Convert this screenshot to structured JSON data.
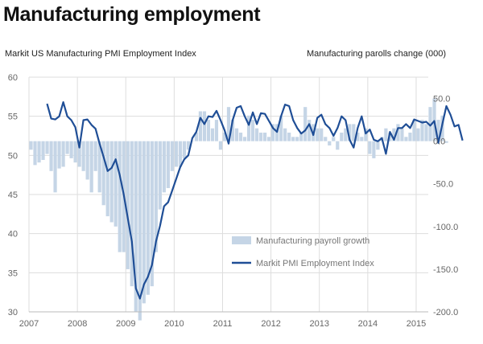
{
  "title": "Manufacturing employment",
  "chart_data": {
    "type": "bar+line",
    "title": "Manufacturing employment",
    "left_axis_label": "Markit US Manufacturing PMI Employment Index",
    "right_axis_label": "Manufacturing parolls change (000)",
    "left_ylim": [
      30,
      60
    ],
    "left_ticks": [
      30,
      35,
      40,
      45,
      50,
      55,
      60
    ],
    "right_ylim": [
      -200,
      75
    ],
    "right_ticks": [
      "50.0",
      "0.0",
      "-50.0",
      "-100.0",
      "-150.0",
      "-200.0"
    ],
    "right_tick_values": [
      50,
      0,
      -50,
      -100,
      -150,
      -200
    ],
    "x_ticks": [
      "2007",
      "2008",
      "2009",
      "2010",
      "2011",
      "2012",
      "2013",
      "2014",
      "2015"
    ],
    "x_start_year": 2007,
    "x_end_year": 2015.25,
    "grid": true,
    "legend_position": "bottom-right",
    "colors": {
      "bars": "#c5d5e6",
      "line": "#1f4e96",
      "grid": "#dddddd"
    },
    "series": [
      {
        "name": "Manufacturing payroll growth",
        "kind": "bar",
        "axis": "right",
        "start": "2007-01",
        "values": [
          -10,
          -28,
          -25,
          -22,
          -15,
          -35,
          -60,
          -32,
          -30,
          -15,
          -20,
          -25,
          -30,
          -35,
          -45,
          -60,
          -35,
          -60,
          -75,
          -88,
          -95,
          -100,
          -130,
          -130,
          -150,
          -170,
          -200,
          -210,
          -190,
          -180,
          -170,
          -130,
          -80,
          -60,
          -55,
          -35,
          -30,
          -30,
          -20,
          -10,
          0,
          10,
          35,
          35,
          25,
          15,
          25,
          -10,
          10,
          40,
          25,
          15,
          10,
          5,
          30,
          25,
          15,
          10,
          10,
          5,
          20,
          20,
          30,
          15,
          10,
          5,
          5,
          10,
          40,
          25,
          20,
          15,
          15,
          5,
          -5,
          5,
          -10,
          10,
          15,
          20,
          20,
          10,
          5,
          15,
          -15,
          -20,
          -10,
          5,
          15,
          10,
          15,
          20,
          15,
          5,
          10,
          25,
          15,
          25,
          20,
          40,
          50,
          25,
          30,
          -2
        ]
      },
      {
        "name": "Markit PMI Employment Index",
        "kind": "line",
        "axis": "left",
        "start": "2007-05",
        "values": [
          56.6,
          54.7,
          54.6,
          55.0,
          56.8,
          55.0,
          54.5,
          53.6,
          51.0,
          54.5,
          54.6,
          53.9,
          53.4,
          51.5,
          49.8,
          48.0,
          48.4,
          49.5,
          47.5,
          45.0,
          42.0,
          39.0,
          33.0,
          31.7,
          33.5,
          34.5,
          36.0,
          39.0,
          41.0,
          43.5,
          44.0,
          45.5,
          47.0,
          48.5,
          49.5,
          50.0,
          52.2,
          53.0,
          54.8,
          54.0,
          55.0,
          54.9,
          55.7,
          54.5,
          53.2,
          51.5,
          54.5,
          56.1,
          56.3,
          55.0,
          53.9,
          55.5,
          54.0,
          55.4,
          55.3,
          54.4,
          53.5,
          53.0,
          55.0,
          56.5,
          56.3,
          54.5,
          53.5,
          52.8,
          53.2,
          54.0,
          52.6,
          54.8,
          55.2,
          54.0,
          53.5,
          52.5,
          53.5,
          55.0,
          54.5,
          52.0,
          51.0,
          53.5,
          55.0,
          52.8,
          53.3,
          52.0,
          51.8,
          52.2,
          50.2,
          53.0,
          52.0,
          53.5,
          53.5,
          54.0,
          53.5,
          54.6,
          54.4,
          54.2,
          54.3,
          53.8,
          54.4,
          51.6,
          54.0,
          56.3,
          55.2,
          53.7,
          53.9,
          51.9
        ]
      }
    ]
  }
}
